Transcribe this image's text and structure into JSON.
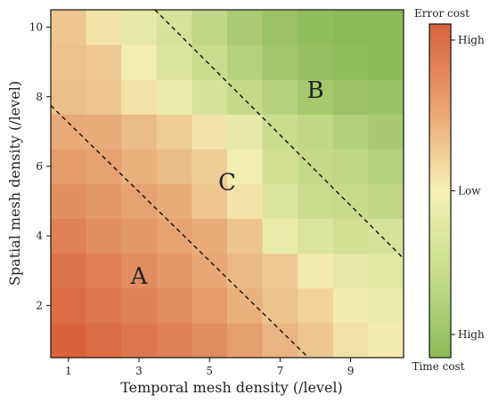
{
  "chart_data": {
    "type": "heatmap",
    "xlabel": "Temporal mesh density (/level)",
    "ylabel": "Spatial mesh density (/level)",
    "x_ticks": [
      "1",
      "3",
      "5",
      "7",
      "9"
    ],
    "y_ticks": [
      "2",
      "4",
      "6",
      "8",
      "10"
    ],
    "x": [
      1,
      2,
      3,
      4,
      5,
      6,
      7,
      8,
      9,
      10
    ],
    "y": [
      1,
      2,
      3,
      4,
      5,
      6,
      7,
      8,
      9,
      10
    ],
    "xlim": [
      0.5,
      10.5
    ],
    "ylim": [
      0.5,
      10.5
    ],
    "z_description": "relative cost: positive = error cost, negative = time cost",
    "values": [
      [
        1.0,
        0.93,
        0.85,
        0.78,
        0.7,
        0.58,
        0.42,
        0.3,
        0.12,
        0.05
      ],
      [
        0.93,
        0.85,
        0.78,
        0.7,
        0.6,
        0.45,
        0.32,
        0.22,
        0.05,
        -0.1
      ],
      [
        0.88,
        0.8,
        0.7,
        0.62,
        0.52,
        0.4,
        0.28,
        0.05,
        -0.15,
        -0.2
      ],
      [
        0.78,
        0.68,
        0.62,
        0.55,
        0.48,
        0.32,
        -0.1,
        -0.25,
        -0.35,
        -0.3
      ],
      [
        0.68,
        0.62,
        0.55,
        0.48,
        0.3,
        0.1,
        -0.25,
        -0.4,
        -0.42,
        -0.5
      ],
      [
        0.6,
        0.55,
        0.45,
        0.38,
        0.25,
        -0.05,
        -0.35,
        -0.45,
        -0.5,
        -0.6
      ],
      [
        0.5,
        0.48,
        0.38,
        0.25,
        0.1,
        -0.15,
        -0.4,
        -0.5,
        -0.62,
        -0.72
      ],
      [
        0.35,
        0.3,
        0.1,
        -0.1,
        -0.3,
        -0.45,
        -0.6,
        -0.75,
        -0.85,
        -0.88
      ],
      [
        0.32,
        0.28,
        0.02,
        -0.25,
        -0.4,
        -0.6,
        -0.8,
        -0.9,
        -0.95,
        -1.0
      ],
      [
        0.3,
        0.1,
        -0.15,
        -0.3,
        -0.5,
        -0.7,
        -0.85,
        -0.95,
        -1.0,
        -1.0
      ]
    ],
    "annotations": [
      {
        "text": "A",
        "x": 3.0,
        "y": 2.8
      },
      {
        "text": "B",
        "x": 8.0,
        "y": 8.15
      },
      {
        "text": "C",
        "x": 5.5,
        "y": 5.5
      }
    ],
    "dashed_lines": [
      {
        "from": [
          0.5,
          7.75
        ],
        "to": [
          7.8,
          0.5
        ]
      },
      {
        "from": [
          3.45,
          10.5
        ],
        "to": [
          10.5,
          3.35
        ]
      }
    ],
    "colorbar": {
      "title_top": "Error cost",
      "title_bottom": "Time cost",
      "labels": [
        "High",
        "Low",
        "High"
      ],
      "label_positions": [
        1.0,
        0.0,
        -1.0
      ],
      "range": [
        -1,
        1
      ],
      "colors": {
        "high_error": "#d9623b",
        "mid": "#f6f1b5",
        "high_time": "#8bbb56"
      }
    },
    "grid": false,
    "legend": "colorbar-right"
  }
}
